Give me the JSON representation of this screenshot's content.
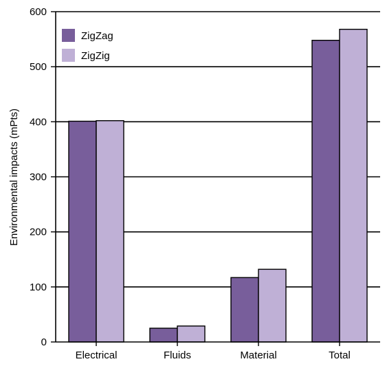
{
  "chart_data": {
    "type": "bar",
    "title": "",
    "xlabel": "",
    "ylabel": "Environmental impacts (mPts)",
    "categories": [
      "Electrical",
      "Fluids",
      "Material",
      "Total"
    ],
    "series": [
      {
        "name": "ZigZag",
        "color": "#785e9b",
        "values": [
          401,
          25,
          117,
          548
        ]
      },
      {
        "name": "ZigZig",
        "color": "#bfb0d6",
        "values": [
          402,
          29,
          132,
          568
        ]
      }
    ],
    "ylim": [
      0,
      600
    ],
    "yticks": [
      0,
      100,
      200,
      300,
      400,
      500,
      600
    ],
    "grid": true,
    "legend": "top-left"
  }
}
